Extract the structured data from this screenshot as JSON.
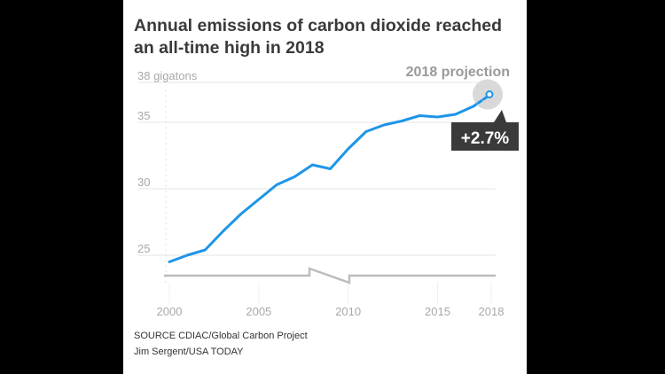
{
  "chart_data": {
    "type": "line",
    "title": "Annual emissions of carbon dioxide reached an all-time high in 2018",
    "ylabel": "",
    "y_unit_label": "38 gigatons",
    "ylim": [
      24,
      38
    ],
    "y_ticks": [
      {
        "value": 38,
        "label": "38 gigatons"
      },
      {
        "value": 35,
        "label": "35"
      },
      {
        "value": 30,
        "label": "30"
      },
      {
        "value": 25,
        "label": "25"
      }
    ],
    "x_ticks": [
      {
        "value": 2000,
        "label": "2000"
      },
      {
        "value": 2005,
        "label": "2005"
      },
      {
        "value": 2010,
        "label": "2010"
      },
      {
        "value": 2015,
        "label": "2015"
      },
      {
        "value": 2018,
        "label": "2018"
      }
    ],
    "x": [
      2000,
      2001,
      2002,
      2003,
      2004,
      2005,
      2006,
      2007,
      2008,
      2009,
      2010,
      2011,
      2012,
      2013,
      2014,
      2015,
      2016,
      2017
    ],
    "values": [
      24.5,
      25.0,
      25.4,
      26.8,
      28.1,
      29.2,
      30.3,
      30.9,
      31.8,
      31.5,
      33.0,
      34.3,
      34.8,
      35.1,
      35.5,
      35.4,
      35.6,
      36.2
    ],
    "projection": {
      "x": 2018,
      "value": 37.1,
      "label": "2018 projection",
      "change_label": "+2.7%"
    },
    "colors": {
      "line": "#1e95e8",
      "axis_break": "#bdbdbd",
      "callout_bg": "#3a3a3a",
      "highlight": "#d9d9d9"
    }
  },
  "source": {
    "line1": "SOURCE CDIAC/Global Carbon Project",
    "line2": "Jim Sergent/USA TODAY"
  }
}
